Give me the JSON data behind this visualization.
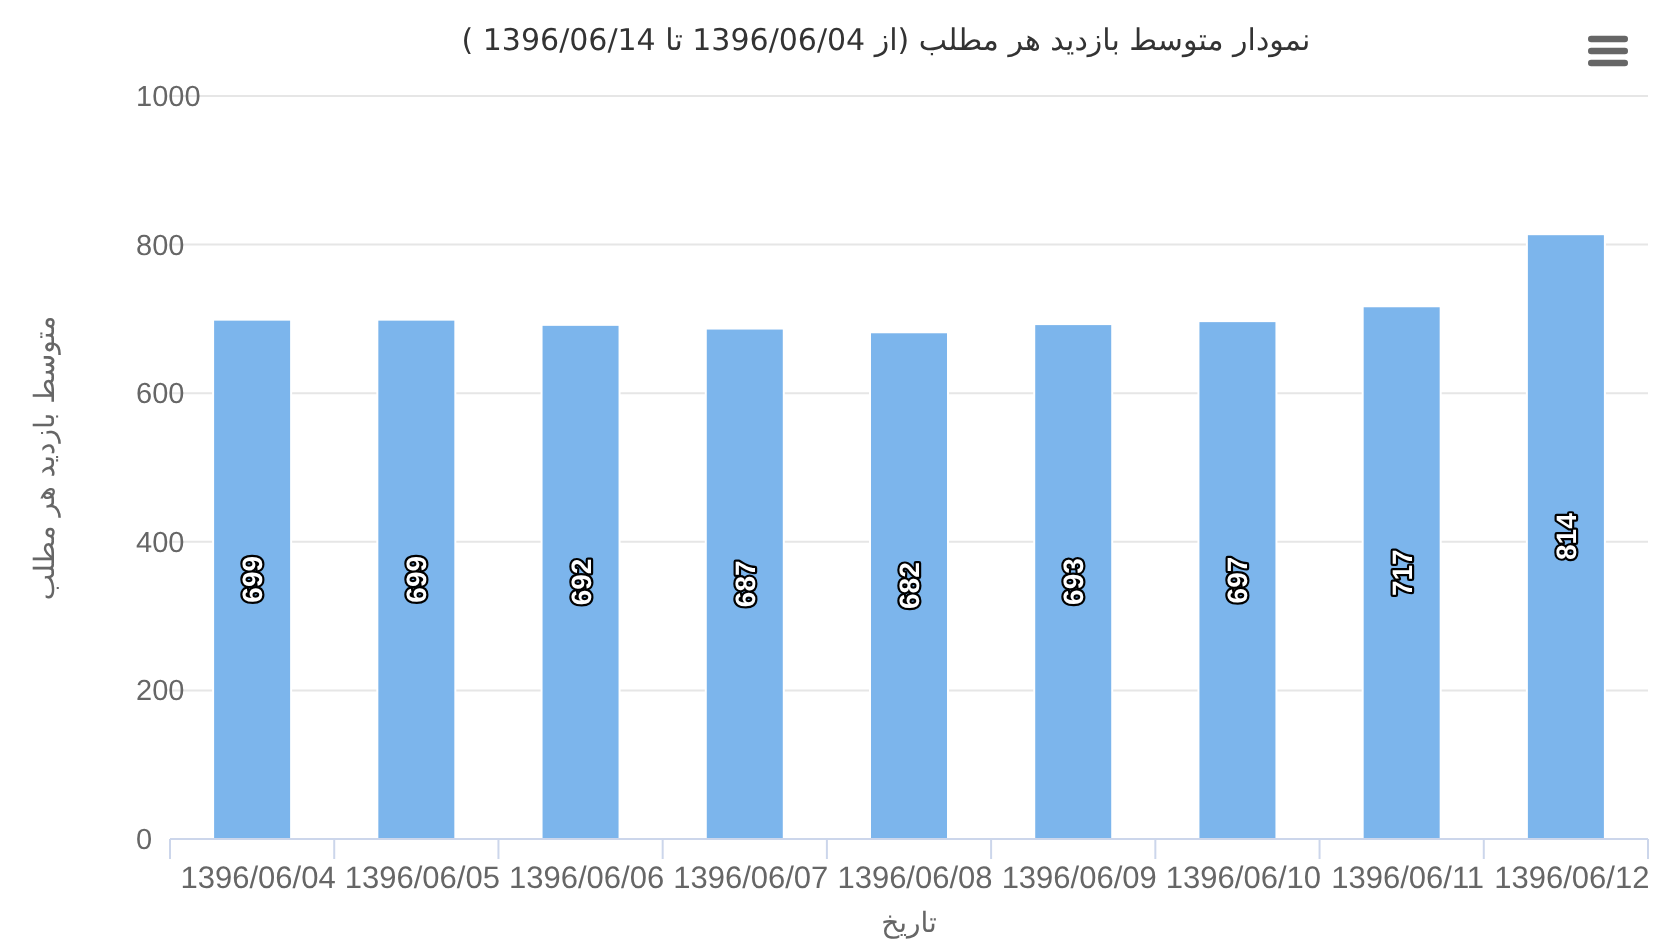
{
  "chart_data": {
    "type": "bar",
    "title": "نمودار متوسط بازدید هر مطلب (از 1396/06/04 تا 1396/06/14 )",
    "xlabel": "تاریخ",
    "ylabel": "متوسط بازدید هر مطلب",
    "categories": [
      "1396/06/04",
      "1396/06/05",
      "1396/06/06",
      "1396/06/07",
      "1396/06/08",
      "1396/06/09",
      "1396/06/10",
      "1396/06/11",
      "1396/06/12"
    ],
    "values": [
      699,
      699,
      692,
      687,
      682,
      693,
      697,
      717,
      814
    ],
    "color": "#7cb5ec",
    "ylim": [
      0,
      1000
    ],
    "yticks": [
      0,
      200,
      400,
      600,
      800,
      1000
    ],
    "grid": "y",
    "data_labels": true
  }
}
